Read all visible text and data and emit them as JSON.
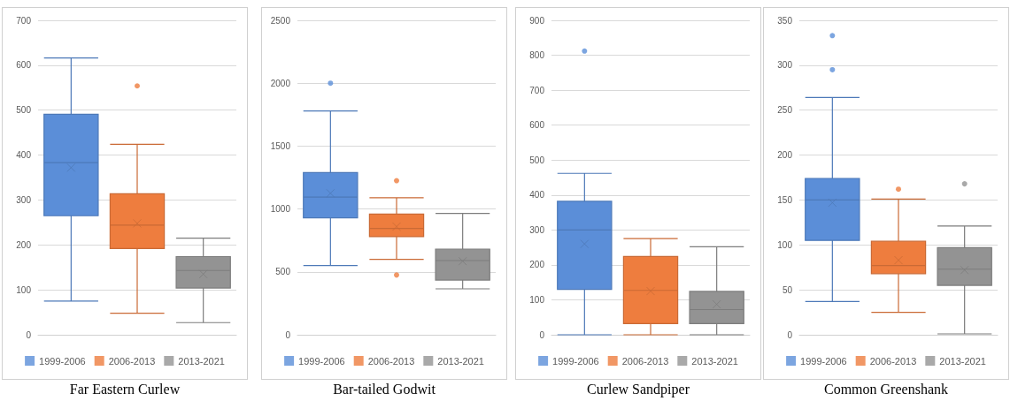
{
  "chart_data": [
    {
      "type": "box",
      "title": "Far Eastern Curlew",
      "ylim": [
        0,
        700
      ],
      "yticks": [
        0,
        100,
        200,
        300,
        400,
        500,
        600,
        700
      ],
      "grid": "y",
      "legend": "bottom",
      "tick_labels": "y",
      "series": [
        {
          "name": "1999-2006",
          "color": "#5b8ed8",
          "boxes": [
            {
              "low": 75,
              "q1": 265,
              "median": 383,
              "q3": 491,
              "high": 616,
              "mean": 372
            }
          ]
        },
        {
          "name": "2006-2013",
          "color": "#ee7d3e",
          "boxes": [
            {
              "low": 48,
              "q1": 192,
              "median": 244,
              "q3": 314,
              "high": 424,
              "mean": 248,
              "outliers": [
                554
              ]
            }
          ]
        },
        {
          "name": "2013-2021",
          "color": "#939393",
          "boxes": [
            {
              "low": 27,
              "q1": 104,
              "median": 143,
              "q3": 174,
              "high": 215,
              "mean": 135
            }
          ]
        }
      ]
    },
    {
      "type": "box",
      "title": "Bar-tailed Godwit",
      "ylim": [
        0,
        2500
      ],
      "yticks": [
        0,
        500,
        1000,
        1500,
        2000,
        2500
      ],
      "grid": "y",
      "legend": "bottom",
      "tick_labels": "y",
      "series": [
        {
          "name": "1999-2006",
          "color": "#5b8ed8",
          "boxes": [
            {
              "low": 550,
              "q1": 930,
              "median": 1095,
              "q3": 1290,
              "high": 1780,
              "mean": 1125,
              "outliers": [
                2000
              ]
            }
          ]
        },
        {
          "name": "2006-2013",
          "color": "#ee7d3e",
          "boxes": [
            {
              "low": 600,
              "q1": 780,
              "median": 845,
              "q3": 960,
              "high": 1090,
              "mean": 860,
              "outliers": [
                1225,
                475
              ]
            }
          ]
        },
        {
          "name": "2013-2021",
          "color": "#939393",
          "boxes": [
            {
              "low": 365,
              "q1": 435,
              "median": 590,
              "q3": 680,
              "high": 965,
              "mean": 585
            }
          ]
        }
      ]
    },
    {
      "type": "box",
      "title": "Curlew Sandpiper",
      "ylim": [
        0,
        900
      ],
      "yticks": [
        0,
        100,
        200,
        300,
        400,
        500,
        600,
        700,
        800,
        900
      ],
      "grid": "y",
      "legend": "bottom",
      "tick_labels": "y",
      "series": [
        {
          "name": "1999-2006",
          "color": "#5b8ed8",
          "boxes": [
            {
              "low": 0,
              "q1": 130,
              "median": 300,
              "q3": 382,
              "high": 462,
              "mean": 260,
              "outliers": [
                812
              ]
            }
          ]
        },
        {
          "name": "2006-2013",
          "color": "#ee7d3e",
          "boxes": [
            {
              "low": 0,
              "q1": 32,
              "median": 127,
              "q3": 224,
              "high": 275,
              "mean": 125
            }
          ]
        },
        {
          "name": "2013-2021",
          "color": "#939393",
          "boxes": [
            {
              "low": 0,
              "q1": 32,
              "median": 72,
              "q3": 124,
              "high": 252,
              "mean": 87
            }
          ]
        }
      ]
    },
    {
      "type": "box",
      "title": "Common Greenshank",
      "ylim": [
        0,
        350
      ],
      "yticks": [
        0,
        50,
        100,
        150,
        200,
        250,
        300,
        350
      ],
      "grid": "y",
      "legend": "bottom",
      "tick_labels": "y",
      "series": [
        {
          "name": "1999-2006",
          "color": "#5b8ed8",
          "boxes": [
            {
              "low": 37,
              "q1": 105,
              "median": 150,
              "q3": 174,
              "high": 264,
              "mean": 147,
              "outliers": [
                333,
                295
              ]
            }
          ]
        },
        {
          "name": "2006-2013",
          "color": "#ee7d3e",
          "boxes": [
            {
              "low": 25,
              "q1": 68,
              "median": 77,
              "q3": 104,
              "high": 151,
              "mean": 83,
              "outliers": [
                162
              ]
            }
          ]
        },
        {
          "name": "2013-2021",
          "color": "#939393",
          "boxes": [
            {
              "low": 1,
              "q1": 55,
              "median": 73,
              "q3": 97,
              "high": 121,
              "mean": 72,
              "outliers": [
                168
              ]
            }
          ]
        }
      ]
    }
  ]
}
